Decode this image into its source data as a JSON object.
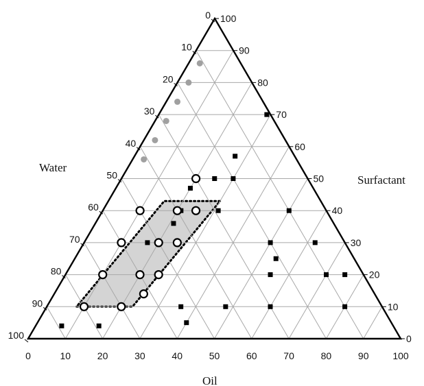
{
  "chart_data": {
    "type": "scatter",
    "subtype": "ternary",
    "title": "",
    "axes": {
      "oil": {
        "label": "Oil",
        "ticks": [
          "0",
          "10",
          "20",
          "30",
          "40",
          "50",
          "60",
          "70",
          "80",
          "90",
          "100"
        ],
        "range": [
          0,
          100
        ]
      },
      "water": {
        "label": "Water",
        "ticks": [
          "0",
          "10",
          "20",
          "30",
          "40",
          "50",
          "60",
          "70",
          "80",
          "90",
          "100"
        ],
        "range": [
          0,
          100
        ]
      },
      "surfactant": {
        "label": "Surfactant",
        "ticks": [
          "0",
          "10",
          "20",
          "30",
          "40",
          "50",
          "60",
          "70",
          "80",
          "90",
          "100"
        ],
        "range": [
          0,
          100
        ]
      }
    },
    "grid": true,
    "series": [
      {
        "marker": "filled-square",
        "color": "#000000",
        "points": [
          {
            "oil": 7,
            "surfactant": 4
          },
          {
            "oil": 17,
            "surfactant": 4
          },
          {
            "oil": 36,
            "surfactant": 10
          },
          {
            "oil": 40,
            "surfactant": 5
          },
          {
            "oil": 48,
            "surfactant": 10
          },
          {
            "oil": 55,
            "surfactant": 20
          },
          {
            "oil": 54,
            "surfactant": 25
          },
          {
            "oil": 50,
            "surfactant": 30
          },
          {
            "oil": 31,
            "surfactant": 40
          },
          {
            "oil": 25,
            "surfactant": 50
          },
          {
            "oil": 20,
            "surfactant": 47
          },
          {
            "oil": 21,
            "surfactant": 40
          },
          {
            "oil": 21,
            "surfactant": 36
          },
          {
            "oil": 17,
            "surfactant": 30
          },
          {
            "oil": 29,
            "surfactant": 70
          },
          {
            "oil": 27,
            "surfactant": 57
          },
          {
            "oil": 30,
            "surfactant": 50
          },
          {
            "oil": 50,
            "surfactant": 40
          },
          {
            "oil": 62,
            "surfactant": 30
          },
          {
            "oil": 70,
            "surfactant": 20
          },
          {
            "oil": 80,
            "surfactant": 10
          },
          {
            "oil": 75,
            "surfactant": 20
          },
          {
            "oil": 60,
            "surfactant": 10
          }
        ]
      },
      {
        "marker": "open-circle",
        "color": "#000000",
        "points": [
          {
            "oil": 10,
            "surfactant": 10
          },
          {
            "oil": 20,
            "surfactant": 10
          },
          {
            "oil": 10,
            "surfactant": 20
          },
          {
            "oil": 20,
            "surfactant": 20
          },
          {
            "oil": 10,
            "surfactant": 30
          },
          {
            "oil": 20,
            "surfactant": 30
          },
          {
            "oil": 10,
            "surfactant": 40
          },
          {
            "oil": 20,
            "surfactant": 40
          },
          {
            "oil": 25,
            "surfactant": 20
          },
          {
            "oil": 25,
            "surfactant": 30
          },
          {
            "oil": 25,
            "surfactant": 40
          },
          {
            "oil": 20,
            "surfactant": 50
          },
          {
            "oil": 24,
            "surfactant": 14
          }
        ]
      },
      {
        "marker": "filled-circle",
        "color": "#a0a0a0",
        "points": [
          {
            "oil": 3,
            "surfactant": 56
          },
          {
            "oil": 3,
            "surfactant": 62
          },
          {
            "oil": 3,
            "surfactant": 68
          },
          {
            "oil": 3,
            "surfactant": 74
          },
          {
            "oil": 3,
            "surfactant": 80
          },
          {
            "oil": 3,
            "surfactant": 86
          }
        ]
      }
    ],
    "region": {
      "style": "shaded-dotted-outline",
      "fill": "#d4d4d4",
      "vertices": [
        {
          "oil": 8,
          "surfactant": 10
        },
        {
          "oil": 23,
          "surfactant": 10
        },
        {
          "oil": 30,
          "surfactant": 43
        },
        {
          "oil": 15,
          "surfactant": 43
        }
      ]
    }
  }
}
